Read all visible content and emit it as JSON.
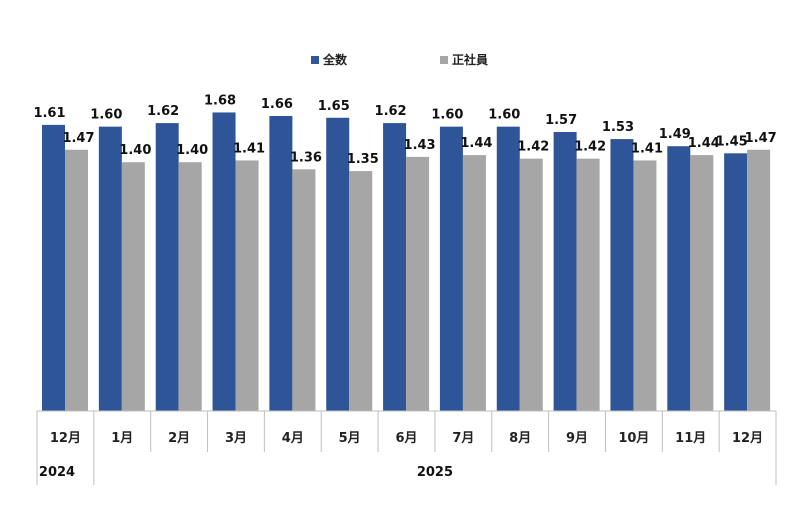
{
  "chart_data": {
    "type": "bar",
    "categories": [
      "12月",
      "1月",
      "2月",
      "3月",
      "4月",
      "5月",
      "6月",
      "7月",
      "8月",
      "9月",
      "10月",
      "11月",
      "12月"
    ],
    "year_groups": [
      {
        "label": "2024",
        "span": 1
      },
      {
        "label": "2025",
        "span": 12
      }
    ],
    "series": [
      {
        "name": "全数",
        "color": "#2E5597",
        "values": [
          1.61,
          1.6,
          1.62,
          1.68,
          1.66,
          1.65,
          1.62,
          1.6,
          1.6,
          1.57,
          1.53,
          1.49,
          1.45
        ],
        "labels": [
          "1.61",
          "1.60",
          "1.62",
          "1.68",
          "1.66",
          "1.65",
          "1.62",
          "1.60",
          "1.60",
          "1.57",
          "1.53",
          "1.49",
          "1.45"
        ]
      },
      {
        "name": "正社員",
        "color": "#A6A6A6",
        "values": [
          1.47,
          1.4,
          1.4,
          1.41,
          1.36,
          1.35,
          1.43,
          1.44,
          1.42,
          1.42,
          1.41,
          1.44,
          1.47
        ],
        "labels": [
          "1.47",
          "1.40",
          "1.40",
          "1.41",
          "1.36",
          "1.35",
          "1.43",
          "1.44",
          "1.42",
          "1.42",
          "1.41",
          "1.44",
          "1.47"
        ]
      }
    ],
    "ylim": [
      0,
      1.75
    ],
    "grid": false,
    "legend_position": "top"
  }
}
